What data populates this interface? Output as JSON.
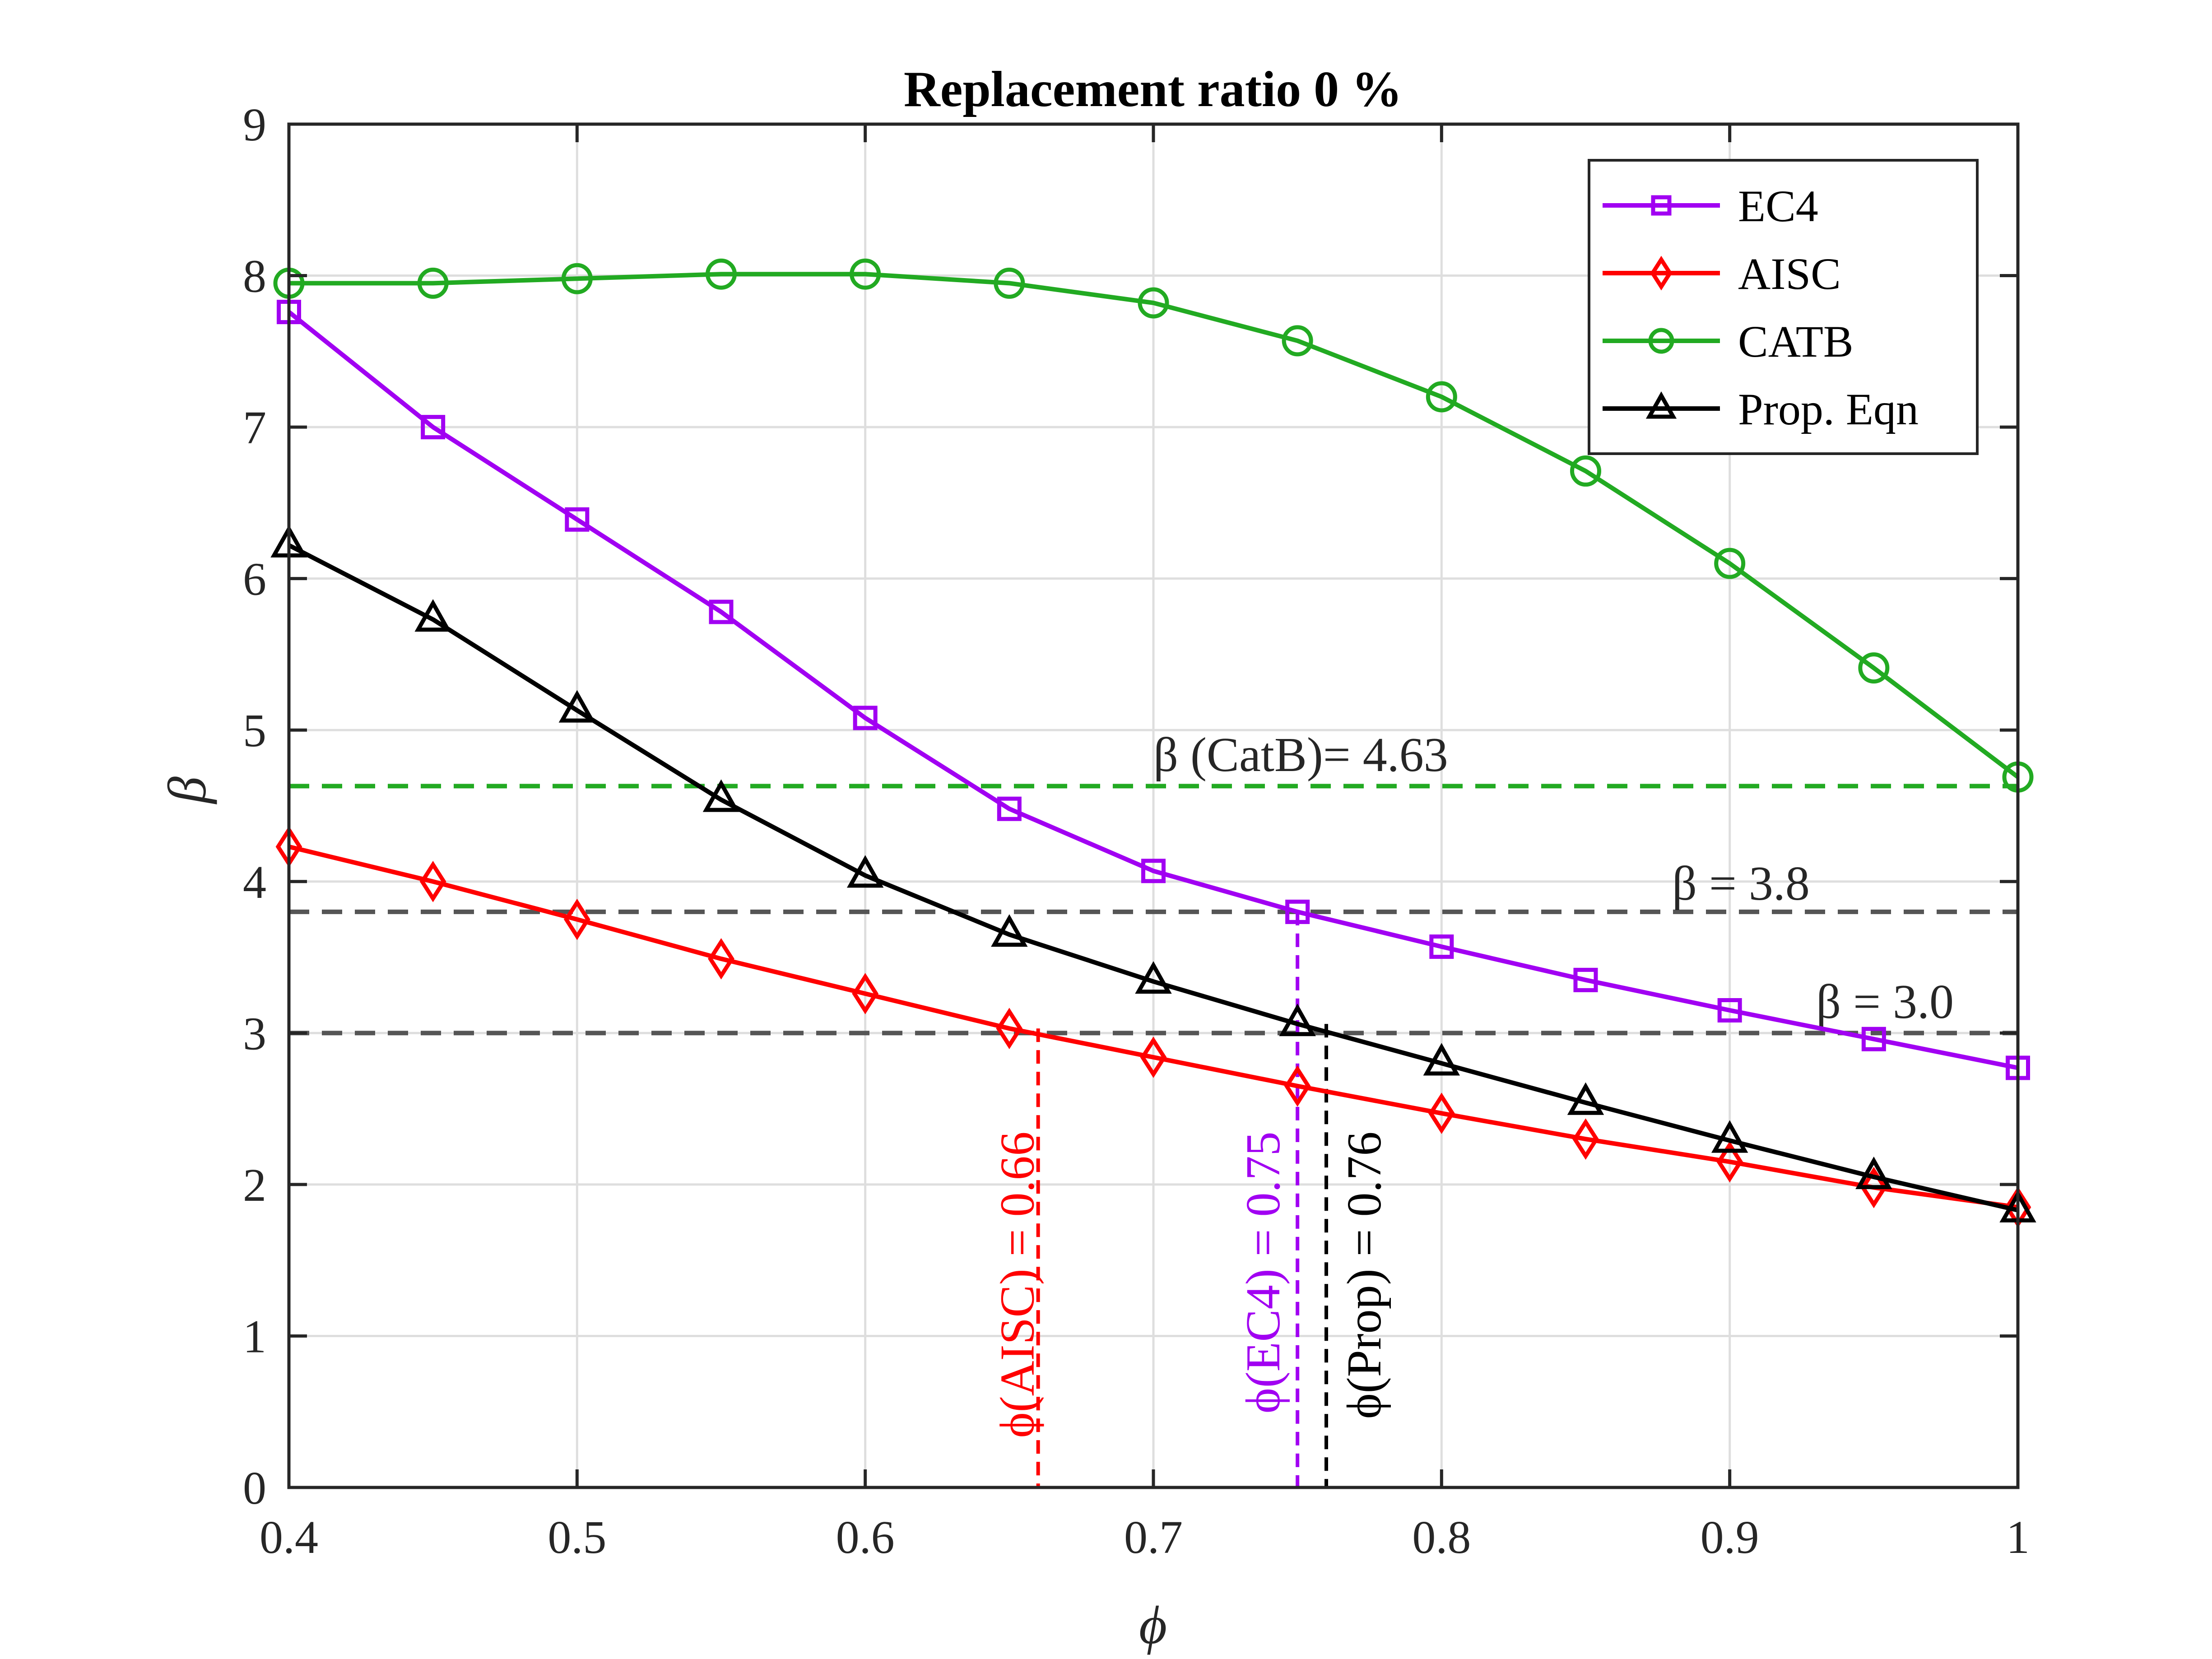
{
  "chart_data": {
    "type": "line",
    "title": "Replacement ratio 0 %",
    "xlabel": "ϕ",
    "ylabel": "β",
    "xlim": [
      0.4,
      1.0
    ],
    "ylim": [
      0,
      9
    ],
    "xticks": [
      0.4,
      0.5,
      0.6,
      0.7,
      0.8,
      0.9,
      1.0
    ],
    "xtick_labels": [
      "0.4",
      "0.5",
      "0.6",
      "0.7",
      "0.8",
      "0.9",
      "1"
    ],
    "yticks": [
      0,
      1,
      2,
      3,
      4,
      5,
      6,
      7,
      8,
      9
    ],
    "ytick_labels": [
      "0",
      "1",
      "2",
      "3",
      "4",
      "5",
      "6",
      "7",
      "8",
      "9"
    ],
    "grid": true,
    "legend_position": "top-right",
    "x": [
      0.4,
      0.45,
      0.5,
      0.55,
      0.6,
      0.65,
      0.7,
      0.75,
      0.8,
      0.85,
      0.9,
      0.95,
      1.0
    ],
    "series": [
      {
        "name": "EC4",
        "color": "#a100f2",
        "marker": "square",
        "values": [
          7.76,
          7.0,
          6.39,
          5.78,
          5.08,
          4.48,
          4.07,
          3.8,
          3.57,
          3.35,
          3.15,
          2.96,
          2.77
        ]
      },
      {
        "name": "AISC",
        "color": "#ff0000",
        "marker": "diamond",
        "values": [
          4.23,
          4.0,
          3.75,
          3.49,
          3.26,
          3.03,
          2.84,
          2.65,
          2.47,
          2.3,
          2.15,
          1.98,
          1.85
        ]
      },
      {
        "name": "CATB",
        "color": "#22aa22",
        "marker": "circle",
        "values": [
          7.95,
          7.95,
          7.98,
          8.01,
          8.01,
          7.95,
          7.82,
          7.57,
          7.2,
          6.71,
          6.1,
          5.41,
          4.69
        ]
      },
      {
        "name": "Prop. Eqn",
        "color": "#000000",
        "marker": "triangle",
        "values": [
          6.22,
          5.73,
          5.13,
          4.54,
          4.04,
          3.65,
          3.34,
          3.06,
          2.8,
          2.54,
          2.29,
          2.05,
          1.83
        ]
      }
    ],
    "reference_lines": [
      {
        "y": 4.63,
        "color": "#22aa22",
        "label": "β (CatB)= 4.63",
        "label_x": 0.7,
        "label_y": 4.73
      },
      {
        "y": 3.8,
        "color": "#555555",
        "label": "β = 3.8",
        "label_x": 0.88,
        "label_y": 3.88
      },
      {
        "y": 3.0,
        "color": "#555555",
        "label": "β = 3.0",
        "label_x": 0.93,
        "label_y": 3.1
      }
    ],
    "vertical_markers": [
      {
        "x": 0.66,
        "y_top": 3.03,
        "color": "#ff0000",
        "label": "ϕ(AISC) = 0.66"
      },
      {
        "x": 0.75,
        "y_top": 3.8,
        "color": "#a100f2",
        "label": "ϕ(EC4) = 0.75"
      },
      {
        "x": 0.76,
        "y_top": 3.06,
        "color": "#000000",
        "label": "ϕ(Prop) = 0.76"
      }
    ]
  }
}
